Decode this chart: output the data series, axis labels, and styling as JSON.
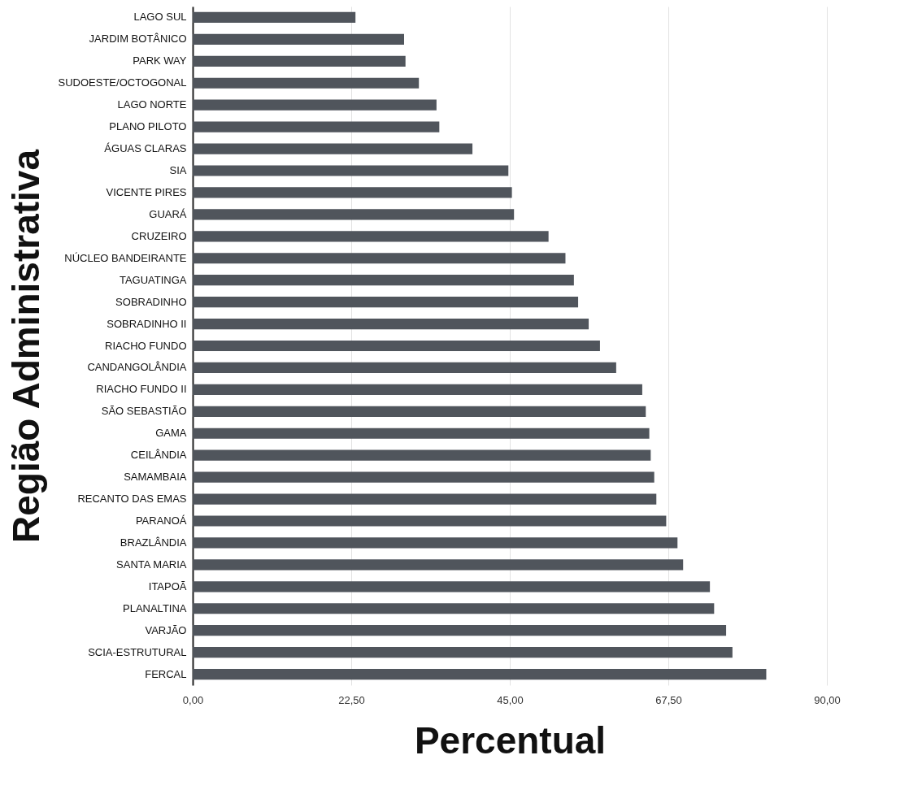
{
  "chart_data": {
    "type": "bar",
    "orientation": "horizontal",
    "xlabel": "Percentual",
    "ylabel": "Região Administrativa",
    "categories": [
      "LAGO SUL",
      "JARDIM BOTÂNICO",
      "PARK WAY",
      "SUDOESTE/OCTOGONAL",
      "LAGO NORTE",
      "PLANO PILOTO",
      "ÁGUAS CLARAS",
      "SIA",
      "VICENTE PIRES",
      "GUARÁ",
      "CRUZEIRO",
      "NÚCLEO BANDEIRANTE",
      "TAGUATINGA",
      "SOBRADINHO",
      "SOBRADINHO II",
      "RIACHO FUNDO",
      "CANDANGOLÂNDIA",
      "RIACHO FUNDO II",
      "SÃO SEBASTIÃO",
      "GAMA",
      "CEILÂNDIA",
      "SAMAMBAIA",
      "RECANTO DAS EMAS",
      "PARANOÁ",
      "BRAZLÂNDIA",
      "SANTA MARIA",
      "ITAPOÃ",
      "PLANALTINA",
      "VARJÃO",
      "SCIA-ESTRUTURAL",
      "FERCAL"
    ],
    "values": [
      23.1,
      30.0,
      30.2,
      32.1,
      34.6,
      35.0,
      39.7,
      44.8,
      45.3,
      45.6,
      50.5,
      52.9,
      54.1,
      54.7,
      56.2,
      57.8,
      60.1,
      63.8,
      64.3,
      64.8,
      65.0,
      65.5,
      65.8,
      67.2,
      68.8,
      69.6,
      73.4,
      74.0,
      75.7,
      76.6,
      81.4
    ],
    "color": "#50555c",
    "xlim": [
      0,
      90
    ],
    "xticks": [
      {
        "value": 0,
        "label": "0,00"
      },
      {
        "value": 22.5,
        "label": "22,50"
      },
      {
        "value": 45,
        "label": "45,00"
      },
      {
        "value": 67.5,
        "label": "67,50"
      },
      {
        "value": 90,
        "label": "90,00"
      }
    ],
    "grid": "x"
  }
}
